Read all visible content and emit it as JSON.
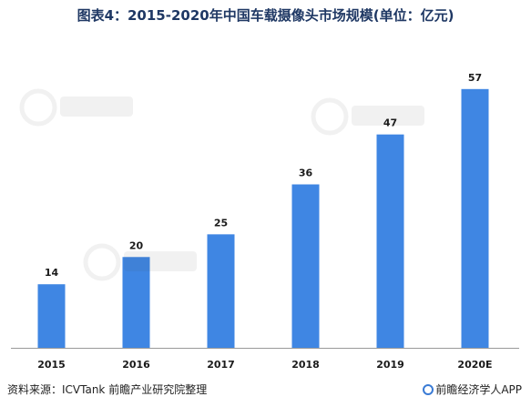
{
  "title": "图表4：2015-2020年中国车载摄像头市场规模(单位：亿元)",
  "footer": {
    "source": "资料来源：ICVTank 前瞻产业研究院整理",
    "brand": "前瞻经济学人APP"
  },
  "colors": {
    "bar": "#3f86e3",
    "axis": "#999999",
    "title": "#1f3864"
  },
  "chart_data": {
    "type": "bar",
    "title": "图表4：2015-2020年中国车载摄像头市场规模(单位：亿元)",
    "categories": [
      "2015",
      "2016",
      "2017",
      "2018",
      "2019",
      "2020E"
    ],
    "values": [
      14,
      20,
      25,
      36,
      47,
      57
    ],
    "data_labels": [
      "14",
      "20",
      "25",
      "36",
      "47",
      "57"
    ],
    "xlabel": "",
    "ylabel": "",
    "ylim": [
      0,
      60
    ],
    "grid": false,
    "legend": "none"
  }
}
